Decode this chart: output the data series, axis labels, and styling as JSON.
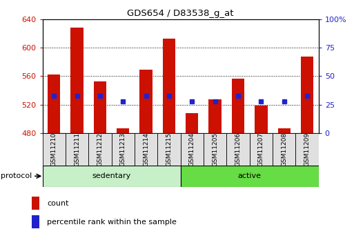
{
  "title": "GDS654 / D83538_g_at",
  "samples": [
    "GSM11210",
    "GSM11211",
    "GSM11212",
    "GSM11213",
    "GSM11214",
    "GSM11215",
    "GSM11204",
    "GSM11205",
    "GSM11206",
    "GSM11207",
    "GSM11208",
    "GSM11209"
  ],
  "counts": [
    562,
    628,
    553,
    487,
    569,
    613,
    508,
    528,
    557,
    519,
    487,
    587
  ],
  "percentiles": [
    33,
    33,
    33,
    28,
    33,
    33,
    28,
    28,
    33,
    28,
    28,
    33
  ],
  "groups": [
    "sedentary",
    "sedentary",
    "sedentary",
    "sedentary",
    "sedentary",
    "sedentary",
    "active",
    "active",
    "active",
    "active",
    "active",
    "active"
  ],
  "group_colors": {
    "sedentary": "#c8f0c8",
    "active": "#66dd44"
  },
  "bar_color": "#cc1100",
  "dot_color": "#2222cc",
  "baseline": 480,
  "ylim_left": [
    480,
    640
  ],
  "ylim_right": [
    0,
    100
  ],
  "yticks_left": [
    480,
    520,
    560,
    600,
    640
  ],
  "yticks_right": [
    0,
    25,
    50,
    75,
    100
  ],
  "grid_values": [
    520,
    560,
    600
  ],
  "left_tick_color": "#cc1100",
  "right_tick_color": "#2222cc",
  "legend_count_label": "count",
  "legend_pct_label": "percentile rank within the sample",
  "protocol_label": "protocol",
  "bg_color": "#ffffff",
  "bar_width": 0.55,
  "figsize": [
    5.13,
    3.45
  ],
  "dpi": 100
}
